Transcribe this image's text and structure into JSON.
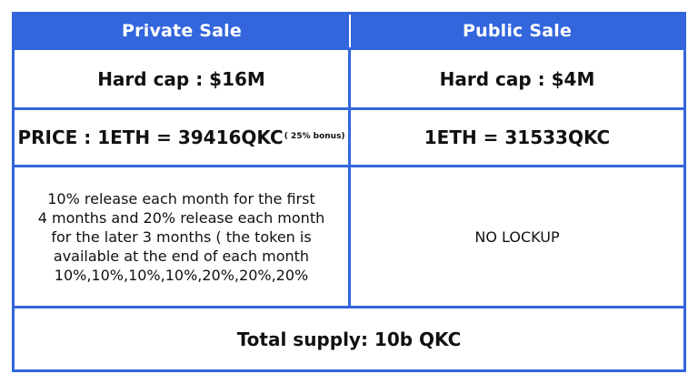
{
  "header": {
    "private_sale": "Private Sale",
    "public_sale": "Public Sale"
  },
  "hard_cap": {
    "private": "Hard cap : $16M",
    "public": "Hard cap : $4M"
  },
  "price": {
    "private": "PRICE : 1ETH = 39416QKC",
    "private_bonus": "( 25% bonus)",
    "public": "1ETH = 31533QKC"
  },
  "release": {
    "private_lines": [
      "10% release each month for the first",
      "4 months and 20% release each month",
      "for the later 3 months ( the token is",
      "available at the end of each month",
      "10%,10%,10%,10%,20%,20%,20%"
    ],
    "public": "NO LOCKUP"
  },
  "footer": {
    "total_supply": "Total supply: 10b QKC"
  },
  "colors": {
    "accent": "#3366dd",
    "text": "#111111",
    "header_text": "#ffffff"
  }
}
